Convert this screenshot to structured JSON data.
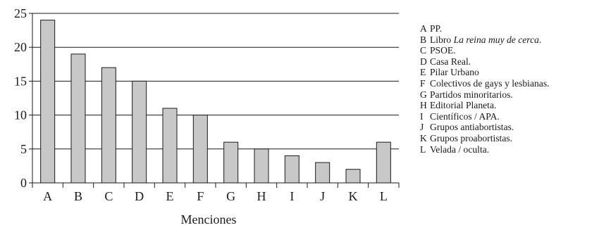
{
  "chart_data": {
    "type": "bar",
    "categories": [
      "A",
      "B",
      "C",
      "D",
      "E",
      "F",
      "G",
      "H",
      "I",
      "J",
      "K",
      "L"
    ],
    "values": [
      24,
      19,
      17,
      15,
      11,
      10,
      6,
      5,
      4,
      3,
      2,
      6
    ],
    "xlabel": "Menciones",
    "ylabel": "",
    "ylim": [
      0,
      25
    ],
    "yticks": [
      0,
      5,
      10,
      15,
      20,
      25
    ],
    "grid": "horizontal",
    "legend_position": "right",
    "legend": [
      {
        "key": "A",
        "label": "PP."
      },
      {
        "key": "B",
        "label": "Libro ",
        "label_italic": "La reina muy de cerca",
        "label_tail": "."
      },
      {
        "key": "C",
        "label": "PSOE."
      },
      {
        "key": "D",
        "label": "Casa Real."
      },
      {
        "key": "E",
        "label": "Pilar Urbano"
      },
      {
        "key": "F",
        "label": "Colectivos de gays y lesbianas."
      },
      {
        "key": "G",
        "label": "Partidos minoritarios."
      },
      {
        "key": "H",
        "label": "Editorial Planeta."
      },
      {
        "key": "I",
        "label": "Científicos / APA."
      },
      {
        "key": "J",
        "label": "Grupos antiabortistas."
      },
      {
        "key": "K",
        "label": "Grupos proabortistas."
      },
      {
        "key": "L",
        "label": "Velada / oculta."
      }
    ],
    "colors": {
      "bar_fill": "#c8c8c8",
      "bar_stroke": "#1a1a1a",
      "axis": "#1a1a1a",
      "grid": "#1a1a1a"
    }
  }
}
